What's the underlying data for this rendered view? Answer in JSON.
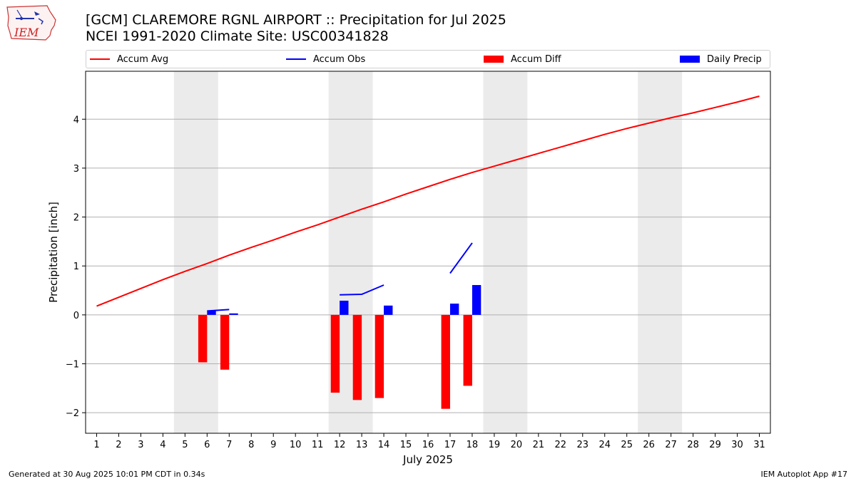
{
  "header": {
    "title_line1": "[GCM] CLAREMORE RGNL AIRPORT :: Precipitation for Jul 2025",
    "title_line2": "NCEI 1991-2020 Climate Site: USC00341828",
    "logo_text": "IEM"
  },
  "legend": {
    "items": [
      {
        "label": "Accum Avg",
        "color": "#ff0000",
        "kind": "line"
      },
      {
        "label": "Accum Obs",
        "color": "#0000ff",
        "kind": "line"
      },
      {
        "label": "Accum Diff",
        "color": "#ff0000",
        "kind": "patch"
      },
      {
        "label": "Daily Precip",
        "color": "#0000ff",
        "kind": "patch"
      }
    ]
  },
  "footer": {
    "left": "Generated at 30 Aug 2025 10:01 PM CDT in 0.34s",
    "right": "IEM Autoplot App #17"
  },
  "chart_data": {
    "type": "bar",
    "xlabel": "July 2025",
    "ylabel": "Precipitation [inch]",
    "xlim": [
      0.5,
      31.5
    ],
    "ylim": [
      -2.42,
      4.98
    ],
    "yticks": [
      -2,
      -1,
      0,
      1,
      2,
      3,
      4
    ],
    "ytick_labels": [
      "−2",
      "−1",
      "0",
      "1",
      "2",
      "3",
      "4"
    ],
    "xticks": [
      1,
      2,
      3,
      4,
      5,
      6,
      7,
      8,
      9,
      10,
      11,
      12,
      13,
      14,
      15,
      16,
      17,
      18,
      19,
      20,
      21,
      22,
      23,
      24,
      25,
      26,
      27,
      28,
      29,
      30,
      31
    ],
    "grid": "horizontal",
    "weekend_shading": [
      [
        4.5,
        6.5
      ],
      [
        11.5,
        13.5
      ],
      [
        18.5,
        20.5
      ],
      [
        25.5,
        27.5
      ]
    ],
    "series": [
      {
        "name": "Accum Avg",
        "type": "line",
        "color": "#ff0000",
        "x": [
          1,
          2,
          3,
          4,
          5,
          6,
          7,
          8,
          9,
          10,
          11,
          12,
          13,
          14,
          15,
          16,
          17,
          18,
          19,
          20,
          21,
          22,
          23,
          24,
          25,
          26,
          27,
          28,
          29,
          30,
          31
        ],
        "values": [
          0.18,
          0.36,
          0.54,
          0.72,
          0.89,
          1.05,
          1.22,
          1.38,
          1.53,
          1.69,
          1.84,
          2.0,
          2.16,
          2.31,
          2.47,
          2.62,
          2.77,
          2.91,
          3.04,
          3.17,
          3.3,
          3.43,
          3.56,
          3.69,
          3.81,
          3.92,
          4.03,
          4.13,
          4.24,
          4.35,
          4.47
        ]
      },
      {
        "name": "Accum Obs",
        "type": "line",
        "color": "#0000ff",
        "segments": [
          {
            "x": [
              6,
              7
            ],
            "values": [
              0.08,
              0.11
            ]
          },
          {
            "x": [
              12,
              13,
              14
            ],
            "values": [
              0.41,
              0.42,
              0.61
            ]
          },
          {
            "x": [
              17,
              18
            ],
            "values": [
              0.85,
              1.47
            ]
          }
        ]
      },
      {
        "name": "Accum Diff",
        "type": "bar",
        "color": "#ff0000",
        "x": [
          5.8,
          6.8,
          11.8,
          12.8,
          13.8,
          16.8,
          17.8
        ],
        "values": [
          -0.97,
          -1.12,
          -1.59,
          -1.74,
          -1.7,
          -1.92,
          -1.45
        ]
      },
      {
        "name": "Daily Precip",
        "type": "bar",
        "color": "#0000ff",
        "x": [
          6.2,
          7.2,
          12.2,
          14.2,
          17.2,
          18.2
        ],
        "values": [
          0.08,
          0.03,
          0.29,
          0.19,
          0.23,
          0.61
        ]
      }
    ]
  }
}
